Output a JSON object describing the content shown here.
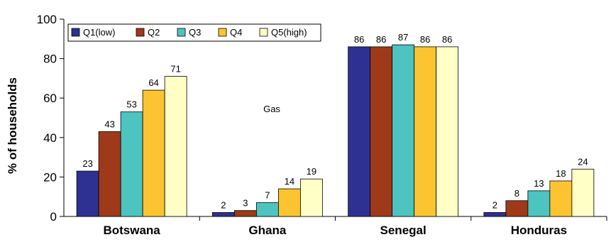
{
  "chart_data": {
    "type": "bar",
    "ylabel": "% of households",
    "ylim": [
      0,
      100
    ],
    "yticks": [
      0,
      20,
      40,
      60,
      80,
      100
    ],
    "grid": false,
    "legend_position": "top-left",
    "annotation": "Gas",
    "categories": [
      "Botswana",
      "Ghana",
      "Senegal",
      "Honduras"
    ],
    "series": [
      {
        "name": "Q1(low)",
        "color": "#2e3192",
        "values": [
          23,
          2,
          86,
          2
        ]
      },
      {
        "name": "Q2",
        "color": "#9e3a1a",
        "values": [
          43,
          3,
          86,
          8
        ]
      },
      {
        "name": "Q3",
        "color": "#4dc4c0",
        "values": [
          53,
          7,
          87,
          13
        ]
      },
      {
        "name": "Q4",
        "color": "#fcc430",
        "values": [
          64,
          14,
          86,
          18
        ]
      },
      {
        "name": "Q5(high)",
        "color": "#ffffc6",
        "values": [
          71,
          19,
          86,
          24
        ]
      }
    ]
  }
}
